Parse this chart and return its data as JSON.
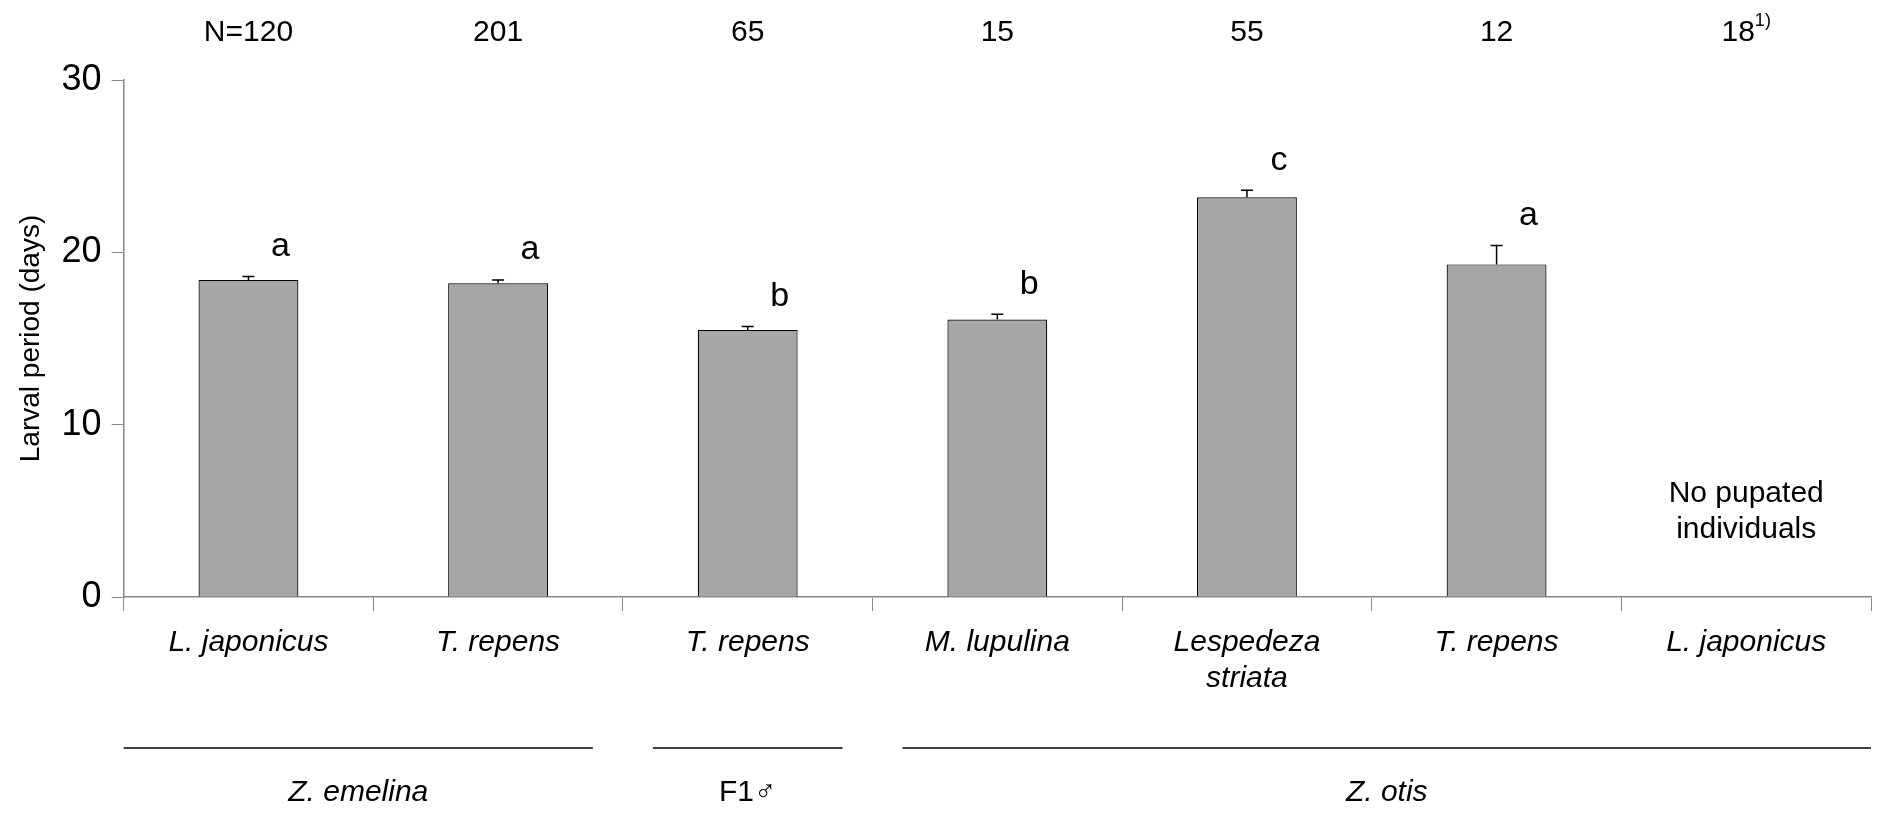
{
  "chart_data": {
    "type": "bar",
    "ylabel": "Larval period (days)",
    "categories": [
      "L. japonicus",
      "T. repens",
      "T. repens",
      "M. lupulina",
      "Lespedeza striata",
      "T. repens",
      "L. japonicus"
    ],
    "values": [
      18.4,
      18.2,
      15.5,
      16.1,
      23.2,
      19.3,
      null
    ],
    "errors": [
      0.2,
      0.2,
      0.2,
      0.3,
      0.4,
      1.1,
      null
    ],
    "color": "#a6a6a6",
    "ylim": [
      0,
      30
    ],
    "yticks": [
      0,
      10,
      20,
      30
    ],
    "grid": false,
    "legend": false,
    "annotations": [
      "N=120",
      "201",
      "65",
      "15",
      "55",
      "12",
      "18$^{1)}$",
      "a",
      "a",
      "b",
      "b",
      "c",
      "a",
      "No pupated individuals",
      "Z. emelina",
      "F1♂",
      "Z. otis"
    ]
  }
}
